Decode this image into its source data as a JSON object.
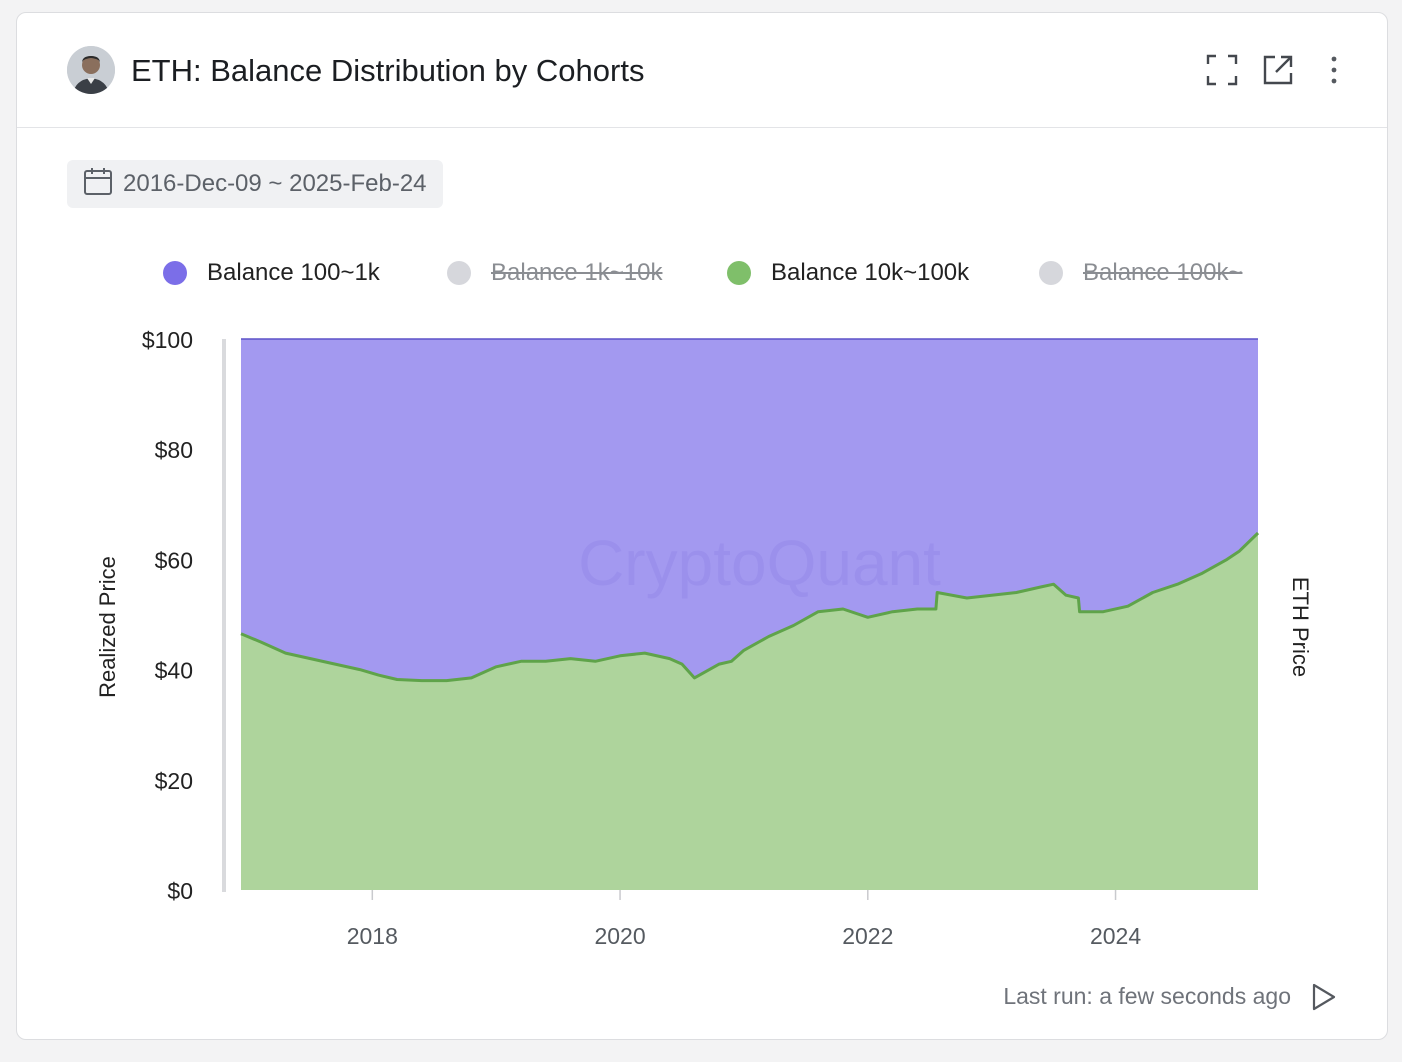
{
  "header": {
    "title": "ETH: Balance Distribution by Cohorts",
    "avatar_icon": "user-avatar",
    "actions": [
      "fullscreen-icon",
      "open-external-icon",
      "more-vertical-icon"
    ]
  },
  "date_range": {
    "icon": "calendar-icon",
    "label": "2016-Dec-09 ~ 2025-Feb-24"
  },
  "legend": [
    {
      "label": "Balance 100~1k",
      "color": "#7b6ee8",
      "active": true
    },
    {
      "label": "Balance 1k~10k",
      "color": "#d6d7dc",
      "active": false
    },
    {
      "label": "Balance 10k~100k",
      "color": "#7fbf6a",
      "active": true
    },
    {
      "label": "Balance 100k~",
      "color": "#d6d7dc",
      "active": false
    }
  ],
  "watermark": "CryptoQuant",
  "footer": {
    "last_run": "Last run: a few seconds ago",
    "run_icon": "play-icon"
  },
  "chart_data": {
    "type": "area",
    "stacked": true,
    "ylabel_left": "Realized Price",
    "ylabel_right": "ETH Price",
    "ylim": [
      0,
      100
    ],
    "y_ticks": [
      "$0",
      "$20",
      "$40",
      "$60",
      "$80",
      "$100"
    ],
    "y_tick_values": [
      0,
      20,
      40,
      60,
      80,
      100
    ],
    "x_ticks": [
      "2018",
      "2020",
      "2022",
      "2024"
    ],
    "x_tick_values": [
      2018.0,
      2020.0,
      2022.0,
      2024.0
    ],
    "xlim": [
      2016.94,
      2025.15
    ],
    "colors": {
      "series1_fill": "#a399f0",
      "series1_line": "#5d52c8",
      "series2_fill": "#aed49c",
      "series2_line": "#5fa34a"
    },
    "series": [
      {
        "name": "Balance 100~1k",
        "note": "fills remainder to 100",
        "values_top": 100
      },
      {
        "name": "Balance 10k~100k",
        "x": [
          2016.94,
          2017.1,
          2017.3,
          2017.5,
          2017.7,
          2017.9,
          2018.05,
          2018.2,
          2018.4,
          2018.6,
          2018.8,
          2019.0,
          2019.2,
          2019.4,
          2019.6,
          2019.8,
          2020.0,
          2020.2,
          2020.4,
          2020.5,
          2020.6,
          2020.8,
          2020.9,
          2021.0,
          2021.2,
          2021.4,
          2021.6,
          2021.8,
          2022.0,
          2022.2,
          2022.4,
          2022.55,
          2022.56,
          2022.8,
          2023.0,
          2023.2,
          2023.4,
          2023.5,
          2023.6,
          2023.7,
          2023.71,
          2023.9,
          2024.1,
          2024.3,
          2024.5,
          2024.7,
          2024.9,
          2025.0,
          2025.15
        ],
        "values": [
          46.5,
          45.0,
          43.0,
          42.0,
          41.0,
          40.0,
          39.0,
          38.2,
          38.0,
          38.0,
          38.5,
          40.5,
          41.5,
          41.5,
          42.0,
          41.5,
          42.5,
          43.0,
          42.0,
          41.0,
          38.5,
          41.0,
          41.5,
          43.5,
          46.0,
          48.0,
          50.5,
          51.0,
          49.5,
          50.5,
          51.0,
          51.0,
          54.0,
          53.0,
          53.5,
          54.0,
          55.0,
          55.5,
          53.5,
          53.0,
          50.5,
          50.5,
          51.5,
          54.0,
          55.5,
          57.5,
          60.0,
          61.5,
          64.8
        ]
      }
    ]
  }
}
